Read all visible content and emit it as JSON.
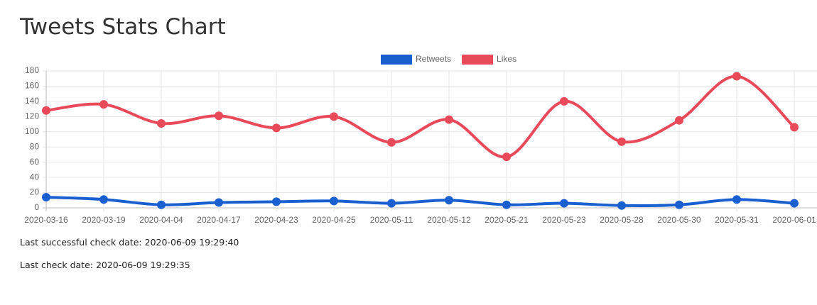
{
  "header": {
    "title": "Tweets Stats Chart"
  },
  "chart_data": {
    "type": "line",
    "categories": [
      "2020-03-16",
      "2020-03-19",
      "2020-04-04",
      "2020-04-17",
      "2020-04-23",
      "2020-04-25",
      "2020-05-11",
      "2020-05-12",
      "2020-05-21",
      "2020-05-23",
      "2020-05-28",
      "2020-05-30",
      "2020-05-31",
      "2020-06-01"
    ],
    "series": [
      {
        "name": "Retweets",
        "color": "#1a5fcf",
        "values": [
          14,
          11,
          4,
          7,
          8,
          9,
          6,
          10,
          4,
          6,
          3,
          4,
          11,
          6
        ]
      },
      {
        "name": "Likes",
        "color": "#e84a5a",
        "values": [
          128,
          136,
          111,
          121,
          105,
          120,
          86,
          116,
          67,
          140,
          87,
          115,
          173,
          106
        ]
      }
    ],
    "ylim": [
      0,
      180
    ],
    "yticks": [
      0,
      20,
      40,
      60,
      80,
      100,
      120,
      140,
      160,
      180
    ],
    "grid": true,
    "legend": "top"
  },
  "status": [
    "Last successful check date: 2020-06-09 19:29:40",
    "Last check date: 2020-06-09 19:29:35"
  ]
}
